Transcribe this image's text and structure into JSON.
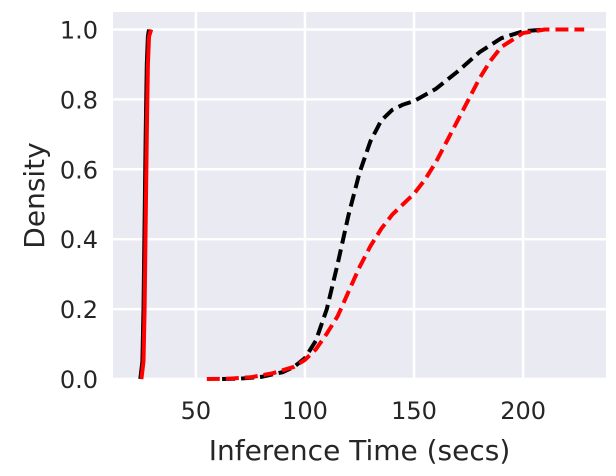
{
  "chart_data": {
    "type": "line",
    "xlabel": "Inference Time (secs)",
    "ylabel": "Density",
    "xlim": [
      12,
      238
    ],
    "ylim": [
      0,
      1.05
    ],
    "x_ticks": [
      50,
      100,
      150,
      200
    ],
    "y_ticks": [
      0.0,
      0.2,
      0.4,
      0.6,
      0.8,
      1.0
    ],
    "x_tick_labels": [
      "50",
      "100",
      "150",
      "200"
    ],
    "y_tick_labels": [
      "0.0",
      "0.2",
      "0.4",
      "0.6",
      "0.8",
      "1.0"
    ],
    "grid": true,
    "background": "#eaeaf2",
    "series": [
      {
        "color": "#000000",
        "dash": "solid",
        "points": [
          [
            24.5,
            0.0
          ],
          [
            25.5,
            0.05
          ],
          [
            26.0,
            0.2
          ],
          [
            26.5,
            0.45
          ],
          [
            27.0,
            0.7
          ],
          [
            27.5,
            0.9
          ],
          [
            28.0,
            0.98
          ],
          [
            28.5,
            1.0
          ]
        ]
      },
      {
        "color": "#ff0000",
        "dash": "solid",
        "points": [
          [
            25.0,
            0.0
          ],
          [
            26.0,
            0.05
          ],
          [
            26.5,
            0.2
          ],
          [
            27.0,
            0.45
          ],
          [
            27.5,
            0.7
          ],
          [
            28.0,
            0.9
          ],
          [
            28.5,
            0.98
          ],
          [
            29.5,
            1.0
          ]
        ]
      },
      {
        "color": "#000000",
        "dash": "dashed",
        "points": [
          [
            62,
            0.0
          ],
          [
            70,
            0.001
          ],
          [
            80,
            0.006
          ],
          [
            90,
            0.02
          ],
          [
            95,
            0.035
          ],
          [
            100,
            0.06
          ],
          [
            105,
            0.11
          ],
          [
            110,
            0.2
          ],
          [
            115,
            0.33
          ],
          [
            120,
            0.47
          ],
          [
            125,
            0.59
          ],
          [
            130,
            0.68
          ],
          [
            135,
            0.74
          ],
          [
            140,
            0.77
          ],
          [
            145,
            0.785
          ],
          [
            150,
            0.795
          ],
          [
            160,
            0.83
          ],
          [
            170,
            0.88
          ],
          [
            180,
            0.935
          ],
          [
            190,
            0.975
          ],
          [
            200,
            0.995
          ],
          [
            210,
            1.0
          ]
        ]
      },
      {
        "color": "#ff0000",
        "dash": "dashed",
        "points": [
          [
            55,
            0.0
          ],
          [
            65,
            0.001
          ],
          [
            75,
            0.005
          ],
          [
            85,
            0.016
          ],
          [
            95,
            0.035
          ],
          [
            100,
            0.055
          ],
          [
            105,
            0.085
          ],
          [
            110,
            0.13
          ],
          [
            115,
            0.18
          ],
          [
            120,
            0.25
          ],
          [
            125,
            0.32
          ],
          [
            130,
            0.38
          ],
          [
            135,
            0.43
          ],
          [
            140,
            0.47
          ],
          [
            145,
            0.5
          ],
          [
            150,
            0.53
          ],
          [
            155,
            0.57
          ],
          [
            160,
            0.62
          ],
          [
            165,
            0.68
          ],
          [
            170,
            0.74
          ],
          [
            175,
            0.8
          ],
          [
            180,
            0.86
          ],
          [
            185,
            0.91
          ],
          [
            190,
            0.95
          ],
          [
            200,
            0.99
          ],
          [
            210,
            1.0
          ],
          [
            228,
            1.0
          ]
        ]
      }
    ]
  }
}
